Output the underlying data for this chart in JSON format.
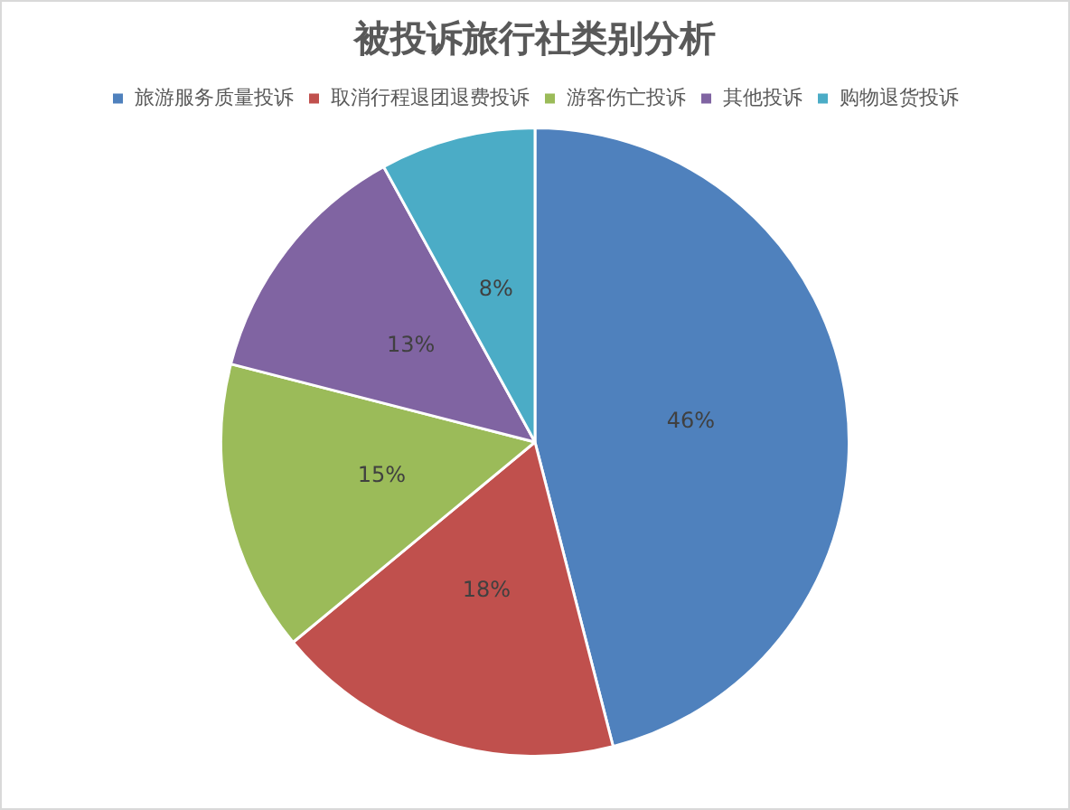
{
  "chart_data": {
    "type": "pie",
    "title": "被投诉旅行社类别分析",
    "categories": [
      "旅游服务质量投诉",
      "取消行程退团退费投诉",
      "游客伤亡投诉",
      "其他投诉",
      "购物退货投诉"
    ],
    "values": [
      46,
      18,
      15,
      13,
      8
    ],
    "colors": [
      "#4f81bd",
      "#c0504d",
      "#9bbb59",
      "#8064a2",
      "#4bacc6"
    ],
    "value_labels": [
      "46%",
      "18%",
      "15%",
      "13%",
      "8%"
    ],
    "legend": "top"
  }
}
